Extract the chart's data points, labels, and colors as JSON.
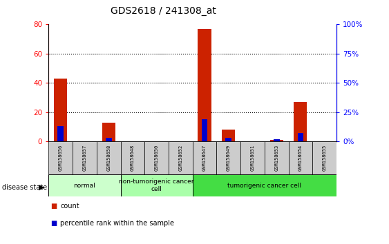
{
  "title": "GDS2618 / 241308_at",
  "samples": [
    "GSM158656",
    "GSM158657",
    "GSM158658",
    "GSM158648",
    "GSM158650",
    "GSM158652",
    "GSM158647",
    "GSM158649",
    "GSM158651",
    "GSM158653",
    "GSM158654",
    "GSM158655"
  ],
  "count_values": [
    43,
    0,
    13,
    0,
    0,
    0,
    77,
    8,
    0,
    1,
    27,
    0
  ],
  "percentile_values": [
    13,
    0,
    3,
    0,
    0,
    0,
    19,
    3,
    0,
    2,
    7,
    0
  ],
  "disease_groups": [
    {
      "label": "normal",
      "start": 0,
      "end": 3,
      "color": "#ccffcc"
    },
    {
      "label": "non-tumorigenic cancer\ncell",
      "start": 3,
      "end": 6,
      "color": "#aaffaa"
    },
    {
      "label": "tumorigenic cancer cell",
      "start": 6,
      "end": 12,
      "color": "#44dd44"
    }
  ],
  "ylim_left": [
    0,
    80
  ],
  "ylim_right": [
    0,
    100
  ],
  "yticks_left": [
    0,
    20,
    40,
    60,
    80
  ],
  "ytick_labels_right": [
    "0%",
    "25%",
    "50%",
    "75%",
    "100%"
  ],
  "yticks_right": [
    0,
    25,
    50,
    75,
    100
  ],
  "count_color": "#cc2200",
  "percentile_color": "#0000cc",
  "bg_color": "#ffffff",
  "sample_box_color": "#cccccc",
  "disease_state_label": "disease state",
  "legend_count": "count",
  "legend_percentile": "percentile rank within the sample",
  "fig_width": 5.63,
  "fig_height": 3.54,
  "dpi": 100
}
